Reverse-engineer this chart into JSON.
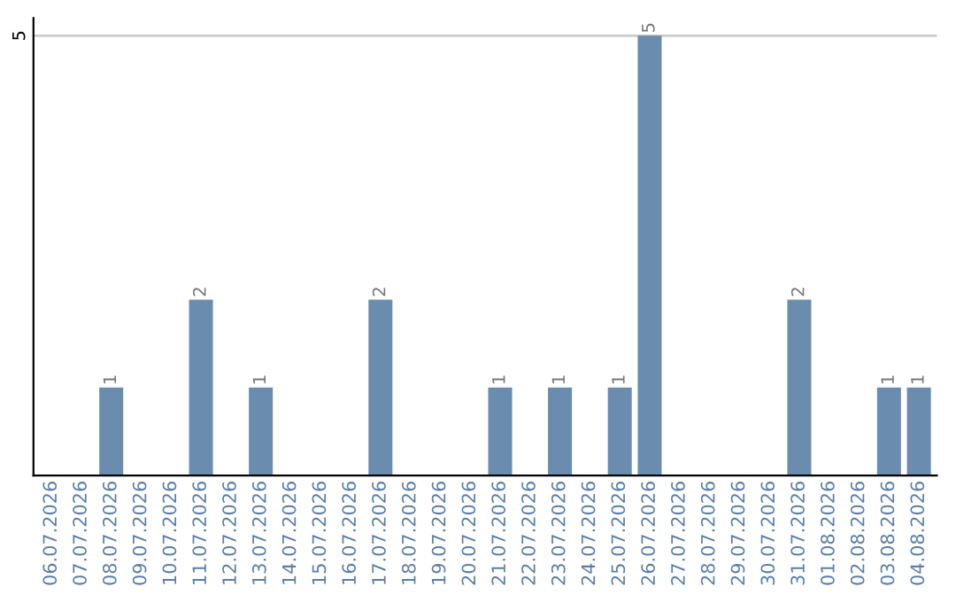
{
  "chart_data": {
    "type": "bar",
    "categories": [
      "06.07.2026",
      "07.07.2026",
      "08.07.2026",
      "09.07.2026",
      "10.07.2026",
      "11.07.2026",
      "12.07.2026",
      "13.07.2026",
      "14.07.2026",
      "15.07.2026",
      "16.07.2026",
      "17.07.2026",
      "18.07.2026",
      "19.07.2026",
      "20.07.2026",
      "21.07.2026",
      "22.07.2026",
      "23.07.2026",
      "24.07.2026",
      "25.07.2026",
      "26.07.2026",
      "27.07.2026",
      "28.07.2026",
      "29.07.2026",
      "30.07.2026",
      "31.07.2026",
      "01.08.2026",
      "02.08.2026",
      "03.08.2026",
      "04.08.2026"
    ],
    "values": [
      0,
      0,
      1,
      0,
      0,
      2,
      0,
      1,
      0,
      0,
      0,
      2,
      0,
      0,
      0,
      1,
      0,
      1,
      0,
      1,
      5,
      0,
      0,
      0,
      0,
      2,
      0,
      0,
      1,
      1
    ],
    "value_labels": [
      null,
      null,
      "1",
      null,
      null,
      "2",
      null,
      "1",
      null,
      null,
      null,
      "2",
      null,
      null,
      null,
      "1",
      null,
      "1",
      null,
      "1",
      "5",
      null,
      null,
      null,
      null,
      "2",
      null,
      null,
      "1",
      "1"
    ],
    "color": "#6a8caf",
    "ylim": [
      0,
      5.2
    ],
    "yticks": [
      5
    ],
    "grid": "y",
    "legend": false
  }
}
